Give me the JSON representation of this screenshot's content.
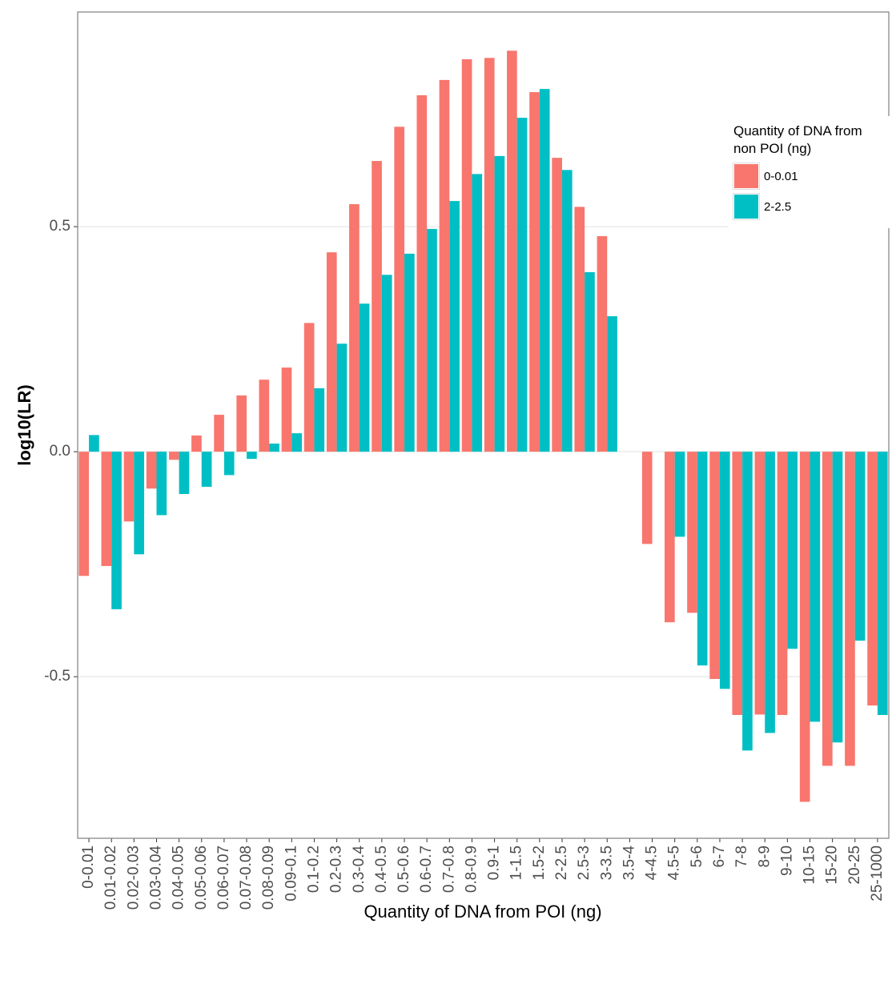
{
  "chart_data": {
    "type": "bar",
    "x_label": "Quantity of DNA from POI (ng)",
    "y_label": "log10(LR)",
    "legend_title": "Quantity of DNA from non POI (ng)",
    "legend": "top-right",
    "grid": true,
    "categories": [
      "0-0.01",
      "0.01-0.02",
      "0.02-0.03",
      "0.03-0.04",
      "0.04-0.05",
      "0.05-0.06",
      "0.06-0.07",
      "0.07-0.08",
      "0.08-0.09",
      "0.09-0.1",
      "0.1-0.2",
      "0.2-0.3",
      "0.3-0.4",
      "0.4-0.5",
      "0.5-0.6",
      "0.6-0.7",
      "0.7-0.8",
      "0.8-0.9",
      "0.9-1",
      "1-1.5",
      "1.5-2",
      "2-2.5",
      "2.5-3",
      "3-3.5",
      "3.5-4",
      "4-4.5",
      "4.5-5",
      "5-6",
      "6-7",
      "7-8",
      "8-9",
      "9-10",
      "10-15",
      "15-20",
      "20-25",
      "25-1000"
    ],
    "series": [
      {
        "name": "0-0.01",
        "color": "#F8766D",
        "values": [
          -0.276,
          -0.254,
          -0.155,
          -0.082,
          -0.018,
          0.036,
          0.082,
          0.125,
          0.16,
          0.187,
          0.286,
          0.443,
          0.55,
          0.646,
          0.722,
          0.792,
          0.826,
          0.872,
          0.875,
          0.891,
          0.799,
          0.653,
          0.544,
          0.479,
          null,
          -0.205,
          -0.379,
          -0.358,
          -0.505,
          -0.585,
          -0.584,
          -0.585,
          -0.778,
          -0.698,
          -0.698,
          -0.564
        ]
      },
      {
        "name": "2-2.5",
        "color": "#00BFC4",
        "values": [
          0.037,
          -0.35,
          -0.228,
          -0.141,
          -0.094,
          -0.078,
          -0.052,
          -0.016,
          0.018,
          0.041,
          0.141,
          0.24,
          0.329,
          0.393,
          0.44,
          0.495,
          0.557,
          0.617,
          0.657,
          0.742,
          0.806,
          0.626,
          0.399,
          0.301,
          null,
          null,
          -0.189,
          -0.475,
          -0.527,
          -0.664,
          -0.625,
          -0.438,
          -0.6,
          -0.646,
          -0.42,
          -0.585
        ]
      }
    ],
    "ylim": [
      -0.859,
      0.977
    ],
    "yticks": [
      -0.5,
      {
        "value": 0,
        "label": "0.0"
      },
      0.5
    ]
  }
}
